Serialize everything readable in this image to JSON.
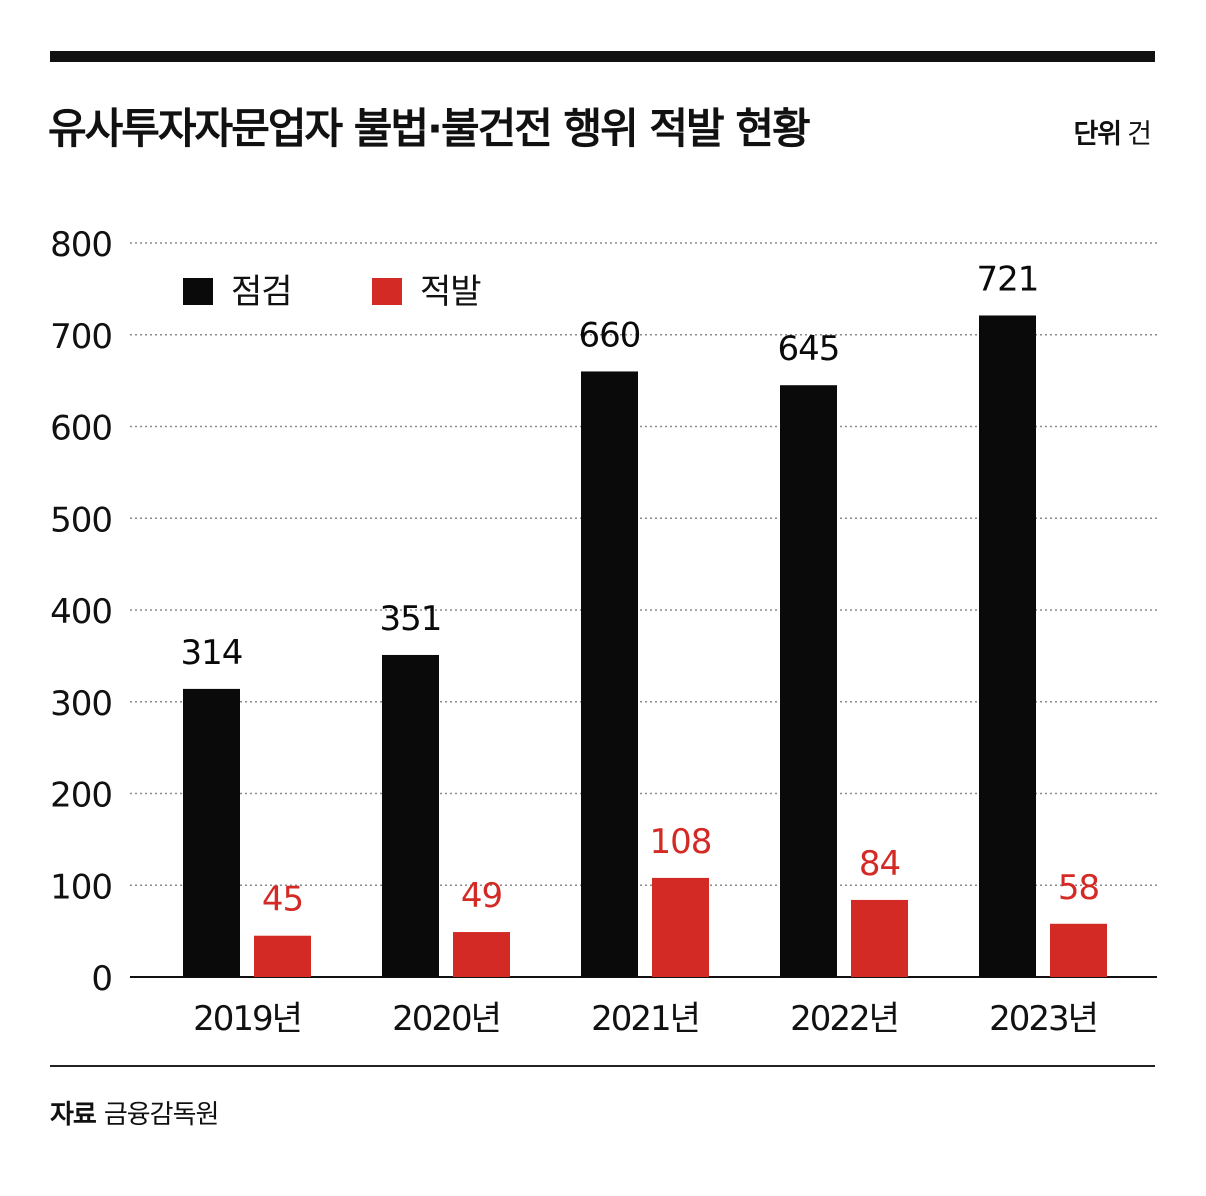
{
  "header": {
    "title": "유사투자자문업자 불법·불건전 행위 적발 현황",
    "unit_label": "단위",
    "unit_value": "건"
  },
  "footer": {
    "source_label": "자료",
    "source_value": "금융감독원"
  },
  "colors": {
    "inspection": "#0a0a0a",
    "detection": "#d42a26"
  },
  "chart_data": {
    "type": "bar",
    "title": "유사투자자문업자 불법·불건전 행위 적발 현황",
    "unit": "단위 건",
    "categories": [
      "2019년",
      "2020년",
      "2021년",
      "2022년",
      "2023년"
    ],
    "series": [
      {
        "name": "점검",
        "color": "#0a0a0a",
        "values": [
          314,
          351,
          660,
          645,
          721
        ]
      },
      {
        "name": "적발",
        "color": "#d42a26",
        "values": [
          45,
          49,
          108,
          84,
          58
        ]
      }
    ],
    "ylim": [
      0,
      800
    ],
    "yticks": [
      0,
      100,
      200,
      300,
      400,
      500,
      600,
      700,
      800
    ],
    "grid": true,
    "legend": "top-left",
    "data_labels": true
  }
}
